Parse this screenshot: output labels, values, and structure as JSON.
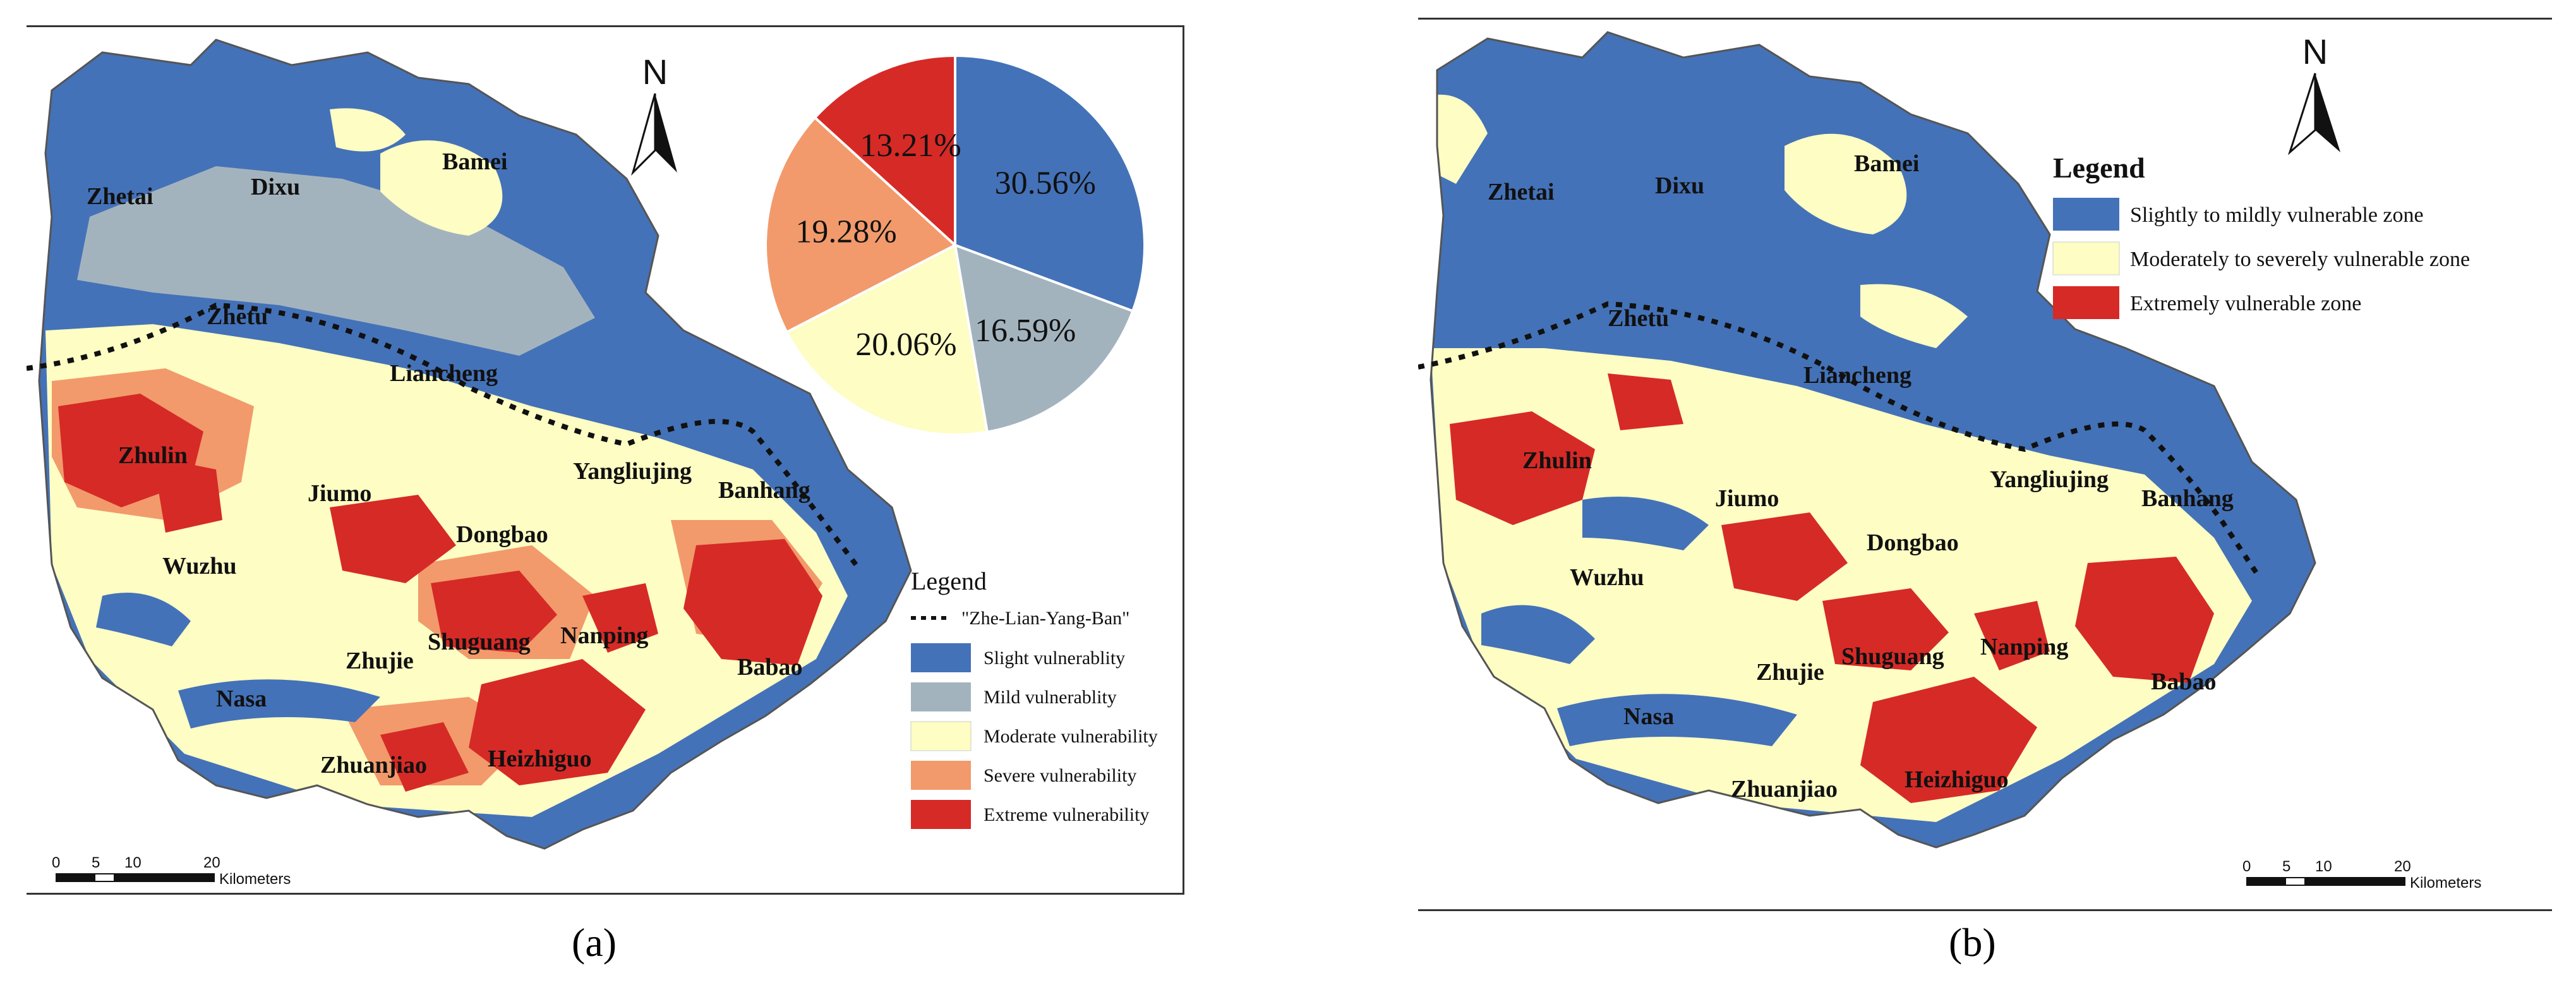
{
  "panel_a": {
    "caption": "(a)",
    "places": [
      "Zhetai",
      "Dixu",
      "Bamei",
      "Zhetu",
      "Liancheng",
      "Zhulin",
      "Jiumo",
      "Yangliujing",
      "Banhang",
      "Dongbao",
      "Wuzhu",
      "Shuguang",
      "Nanping",
      "Zhujie",
      "Babao",
      "Nasa",
      "Zhuanjiao",
      "Heizhiguo"
    ],
    "legend": {
      "title": "Legend",
      "line_label": "\"Zhe-Lian-Yang-Ban\"",
      "items": [
        {
          "label": "Slight vulnerablity",
          "color": "#4472b8"
        },
        {
          "label": "Mild vulnerablity",
          "color": "#a3b3be"
        },
        {
          "label": "Moderate vulnerability",
          "color": "#fdfdc4"
        },
        {
          "label": "Severe vulnerability",
          "color": "#f29a6b"
        },
        {
          "label": "Extreme vulnerability",
          "color": "#d62a26"
        }
      ]
    },
    "north_label": "N",
    "scale": {
      "ticks": [
        "0",
        "5",
        "10",
        "20"
      ],
      "unit": "Kilometers"
    }
  },
  "panel_b": {
    "caption": "(b)",
    "places": [
      "Zhetai",
      "Dixu",
      "Bamei",
      "Zhetu",
      "Liancheng",
      "Zhulin",
      "Jiumo",
      "Yangliujing",
      "Banhang",
      "Dongbao",
      "Wuzhu",
      "Zhujie",
      "Shuguang",
      "Nanping",
      "Babao",
      "Nasa",
      "Zhuanjiao",
      "Heizhiguo"
    ],
    "legend": {
      "title": "Legend",
      "items": [
        {
          "label": "Slightly to mildly vulnerable zone",
          "color": "#4472b8"
        },
        {
          "label": "Moderately to severely vulnerable zone",
          "color": "#fdfdc4"
        },
        {
          "label": "Extremely vulnerable zone",
          "color": "#d62a26"
        }
      ]
    },
    "north_label": "N",
    "scale": {
      "ticks": [
        "0",
        "5",
        "10",
        "20"
      ],
      "unit": "Kilometers"
    }
  },
  "chart_data": {
    "type": "pie",
    "title": "",
    "slices": [
      {
        "label": "30.56%",
        "value": 30.56,
        "color": "#4472b8"
      },
      {
        "label": "16.59%",
        "value": 16.59,
        "color": "#a3b3be"
      },
      {
        "label": "20.06%",
        "value": 20.06,
        "color": "#fdfdc4"
      },
      {
        "label": "19.28%",
        "value": 19.28,
        "color": "#f29a6b"
      },
      {
        "label": "13.21%",
        "value": 13.21,
        "color": "#d62a26"
      }
    ]
  }
}
